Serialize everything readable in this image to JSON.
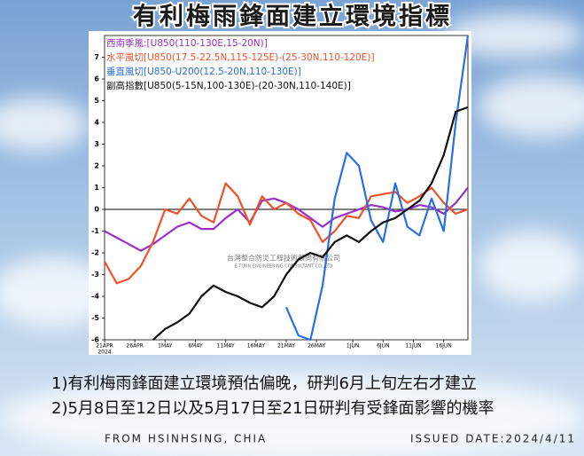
{
  "chart_data": {
    "type": "line",
    "title": "有利梅雨鋒面建立環境指標",
    "x": [
      0,
      2,
      4,
      6,
      8,
      10,
      12,
      14,
      16,
      18,
      20,
      22,
      24,
      26,
      28,
      30,
      32,
      34,
      36,
      38,
      40,
      42,
      44,
      46,
      48,
      50,
      52,
      54,
      56,
      58,
      60
    ],
    "xlim": [
      0,
      60
    ],
    "xticks": [
      {
        "value": 0,
        "label": "21APR"
      },
      {
        "value": 5,
        "label": "26APR"
      },
      {
        "value": 10,
        "label": "1MAY"
      },
      {
        "value": 15,
        "label": "6MAY"
      },
      {
        "value": 20,
        "label": "11MAY"
      },
      {
        "value": 25,
        "label": "16MAY"
      },
      {
        "value": 30,
        "label": "21MAY"
      },
      {
        "value": 35,
        "label": "26MAY"
      },
      {
        "value": 41,
        "label": "1JUN"
      },
      {
        "value": 46,
        "label": "6JUN"
      },
      {
        "value": 51,
        "label": "11JUN"
      },
      {
        "value": 56,
        "label": "16JUN"
      }
    ],
    "year": "2024",
    "ylim": [
      -6,
      8
    ],
    "yticks": [
      -6,
      -5,
      -4,
      -3,
      -2,
      -1,
      0,
      1,
      2,
      3,
      4,
      5,
      6,
      7
    ],
    "series": [
      {
        "name": "西南季風:[U850(110-130E,15-20N)]",
        "color": "#9a2fc8",
        "values": [
          -1.0,
          -1.3,
          -1.6,
          -1.9,
          -1.6,
          -1.2,
          -0.8,
          -0.6,
          -0.9,
          -0.9,
          -0.4,
          0.0,
          -0.6,
          0.4,
          0.5,
          0.3,
          0.0,
          -0.4,
          -0.8,
          -0.4,
          -0.2,
          0.0,
          0.2,
          0.1,
          -0.1,
          0.0,
          0.2,
          0.1,
          -0.2,
          0.3,
          1.0
        ]
      },
      {
        "name": "水平風切[U850(17.5-22.5N,115-125E)-(25-30N,110-120E)]",
        "color": "#f0502a",
        "values": [
          -2.4,
          -3.4,
          -3.2,
          -2.6,
          -1.5,
          0.0,
          -0.2,
          0.5,
          -0.3,
          -0.6,
          1.2,
          0.6,
          -0.7,
          0.6,
          0.0,
          0.3,
          -0.2,
          -0.5,
          -1.5,
          -1.0,
          -0.3,
          -0.4,
          0.6,
          0.7,
          0.8,
          0.3,
          0.6,
          1.0,
          0.3,
          -0.2,
          0.0
        ]
      },
      {
        "name": "垂直風切[U850-U200(12.5-20N,110-130E)]",
        "color": "#2a6fe0",
        "values": [
          null,
          null,
          null,
          null,
          null,
          null,
          null,
          null,
          null,
          null,
          null,
          null,
          null,
          null,
          null,
          -4.5,
          -5.8,
          -6.0,
          -3.5,
          0.5,
          2.6,
          2.0,
          -0.5,
          -1.5,
          1.2,
          -0.8,
          -1.2,
          0.5,
          -1.0,
          4.0,
          8.0
        ]
      },
      {
        "name": "副高指數[U850(5-15N,100-130E)-(20-30N,110-140E)]",
        "color": "#111111",
        "values": [
          null,
          null,
          null,
          null,
          -6.0,
          -5.5,
          -5.2,
          -4.8,
          -4.0,
          -3.5,
          -3.8,
          -4.0,
          -4.3,
          -4.5,
          -4.0,
          -3.0,
          -2.3,
          -2.0,
          -2.2,
          -1.5,
          -1.2,
          -1.5,
          -1.0,
          -0.6,
          -0.4,
          0.0,
          0.4,
          1.2,
          2.5,
          4.5,
          4.7
        ]
      }
    ],
    "watermark": [
      "台灣整合防災工程技術顧問有限公司",
      "E-TURN ENGINEERING CONSULTANT CO.,LTD"
    ]
  },
  "notes": [
    "1)有利梅雨鋒面建立環境預估偏晚，研判6月上旬左右才建立",
    "2)5月8日至12日以及5月17日至21日研判有受鋒面影響的機率"
  ],
  "source": "FROM HSINHSING, CHIA",
  "issued": "ISSUED DATE:2024/4/11"
}
